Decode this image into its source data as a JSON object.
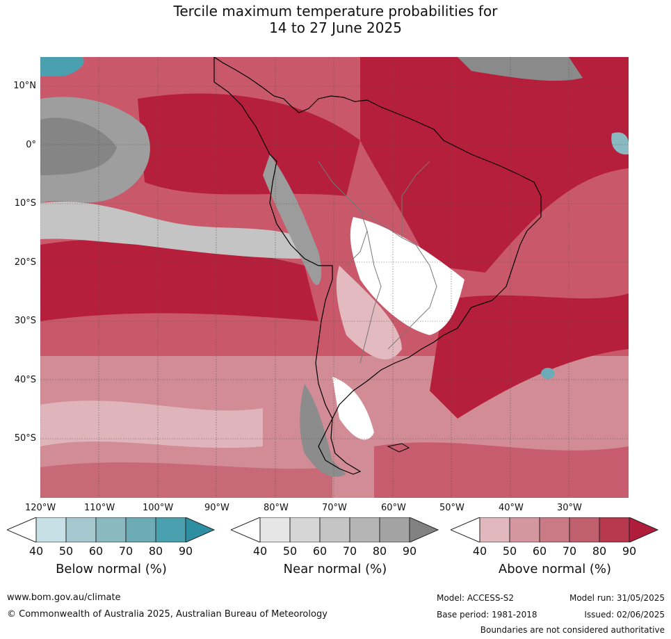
{
  "title_line1": "Tercile maximum temperature probabilities for",
  "title_line2": "14 to 27 June 2025",
  "lat_labels": [
    "10°N",
    "0°",
    "10°S",
    "20°S",
    "30°S",
    "40°S",
    "50°S"
  ],
  "lon_labels": [
    "120°W",
    "110°W",
    "100°W",
    "90°W",
    "80°W",
    "70°W",
    "60°W",
    "50°W",
    "40°W",
    "30°W"
  ],
  "colorbars": [
    {
      "title": "Below normal (%)",
      "ticks": [
        "40",
        "50",
        "60",
        "70",
        "80",
        "90"
      ],
      "colors": [
        "#ffffff",
        "#c7e0e6",
        "#a6c9cf",
        "#8bb9c1",
        "#6dabb7",
        "#4ba0b0",
        "#2e8fa3"
      ]
    },
    {
      "title": "Near normal (%)",
      "ticks": [
        "40",
        "50",
        "60",
        "70",
        "80",
        "90"
      ],
      "colors": [
        "#ffffff",
        "#e6e6e6",
        "#d6d6d6",
        "#c5c5c5",
        "#b5b5b5",
        "#a3a3a3",
        "#828282"
      ]
    },
    {
      "title": "Above normal (%)",
      "ticks": [
        "40",
        "50",
        "60",
        "70",
        "80",
        "90"
      ],
      "colors": [
        "#ffffff",
        "#e0b8bd",
        "#d4969f",
        "#c97a85",
        "#c05f6d",
        "#b7384d",
        "#b01c3b"
      ]
    }
  ],
  "footer": {
    "website": "www.bom.gov.au/climate",
    "copyright": "© Commonwealth of Australia 2025, Australian Bureau of Meteorology",
    "model": "Model: ACCESS-S2",
    "base_period": "Base period: 1981-2018",
    "model_run": "Model run: 31/05/2025",
    "issued": "Issued: 02/06/2025",
    "boundaries": "Boundaries are not considered authoritative"
  }
}
